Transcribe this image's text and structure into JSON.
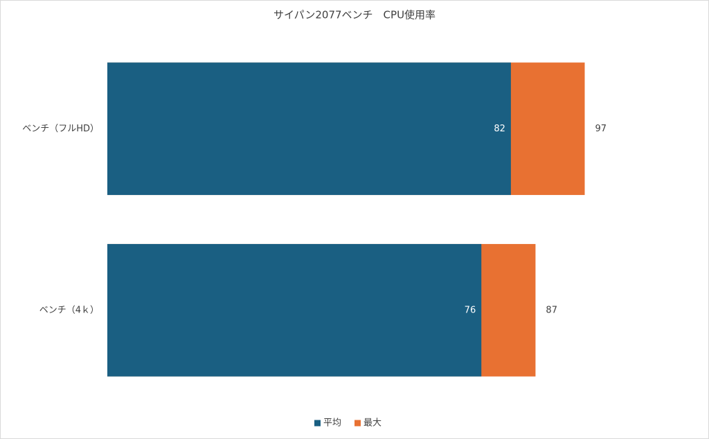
{
  "chart_data": {
    "type": "bar",
    "orientation": "horizontal",
    "overlap": true,
    "title": "サイパン2077ベンチ　CPU使用率",
    "categories": [
      "ベンチ（フルHD）",
      "ベンチ（4ｋ）"
    ],
    "series": [
      {
        "name": "平均",
        "color": "#1a5f82",
        "values": [
          82,
          76
        ]
      },
      {
        "name": "最大",
        "color": "#e87132",
        "values": [
          97,
          87
        ]
      }
    ],
    "xlim": [
      0,
      120
    ],
    "legend": "bottom"
  }
}
